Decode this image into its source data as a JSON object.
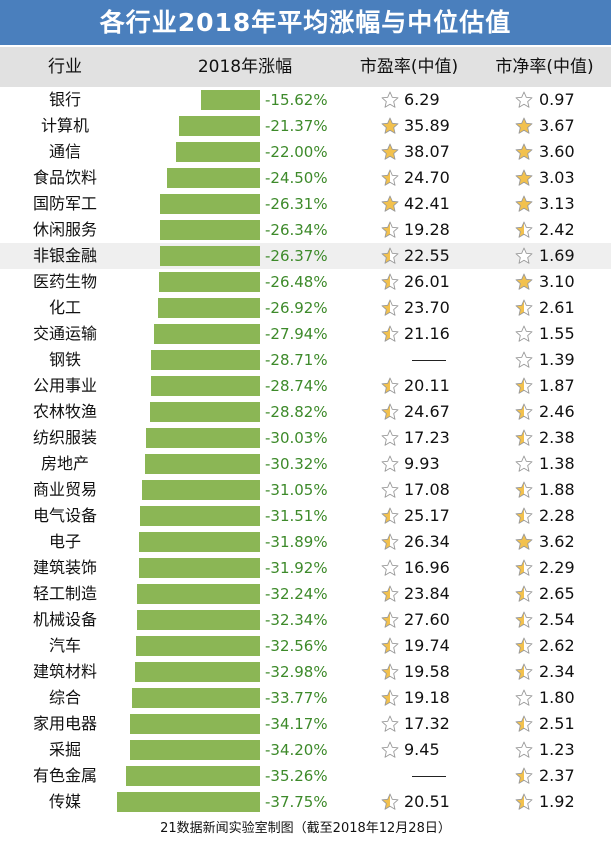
{
  "title": "各行业2018年平均涨幅与中位估值",
  "headers": {
    "industry": "行业",
    "change": "2018年涨幅",
    "pe": "市盈率(中值)",
    "pb": "市净率(中值)"
  },
  "colors": {
    "title_bg": "#4a7fbd",
    "bar": "#8bb655",
    "pct_text": "#3d8a2a",
    "star_gold": "#f2c14e",
    "star_empty": "#ffffff"
  },
  "chart_data": {
    "type": "bar",
    "orientation": "horizontal",
    "title": "各行业2018年平均涨幅与中位估值",
    "categories": [
      "银行",
      "计算机",
      "通信",
      "食品饮料",
      "国防军工",
      "休闲服务",
      "非银金融",
      "医药生物",
      "化工",
      "交通运输",
      "钢铁",
      "公用事业",
      "农林牧渔",
      "纺织服装",
      "房地产",
      "商业贸易",
      "电气设备",
      "电子",
      "建筑装饰",
      "轻工制造",
      "机械设备",
      "汽车",
      "建筑材料",
      "综合",
      "家用电器",
      "采掘",
      "有色金属",
      "传媒"
    ],
    "series": [
      {
        "name": "2018年涨幅",
        "values": [
          -15.62,
          -21.37,
          -22.0,
          -24.5,
          -26.31,
          -26.34,
          -26.37,
          -26.48,
          -26.92,
          -27.94,
          -28.71,
          -28.74,
          -28.82,
          -30.03,
          -30.32,
          -31.05,
          -31.51,
          -31.89,
          -31.92,
          -32.24,
          -32.34,
          -32.56,
          -32.98,
          -33.77,
          -34.17,
          -34.2,
          -35.26,
          -37.75
        ]
      }
    ],
    "labels": [
      "-15.62%",
      "-21.37%",
      "-22.00%",
      "-24.50%",
      "-26.31%",
      "-26.34%",
      "-26.37%",
      "-26.48%",
      "-26.92%",
      "-27.94%",
      "-28.71%",
      "-28.74%",
      "-28.82%",
      "-30.03%",
      "-30.32%",
      "-31.05%",
      "-31.51%",
      "-31.89%",
      "-31.92%",
      "-32.24%",
      "-32.34%",
      "-32.56%",
      "-32.98%",
      "-33.77%",
      "-34.17%",
      "-34.20%",
      "-35.26%",
      "-37.75%"
    ],
    "pe_median": [
      "6.29",
      "35.89",
      "38.07",
      "24.70",
      "42.41",
      "19.28",
      "22.55",
      "26.01",
      "23.70",
      "21.16",
      "",
      "20.11",
      "24.67",
      "17.23",
      "9.93",
      "17.08",
      "25.17",
      "26.34",
      "16.96",
      "23.84",
      "27.60",
      "19.74",
      "19.58",
      "19.18",
      "17.32",
      "9.45",
      "",
      "20.51"
    ],
    "pe_star_fill": [
      0,
      1,
      1,
      0.5,
      1,
      0.5,
      0.5,
      0.5,
      0.5,
      0.5,
      null,
      0.5,
      0.5,
      0,
      0,
      0,
      0.5,
      0.5,
      0,
      0.5,
      0.5,
      0.5,
      0.5,
      0.5,
      0,
      0,
      null,
      0.5
    ],
    "pb_median": [
      "0.97",
      "3.67",
      "3.60",
      "3.03",
      "3.13",
      "2.42",
      "1.69",
      "3.10",
      "2.61",
      "1.55",
      "1.39",
      "1.87",
      "2.46",
      "2.38",
      "1.38",
      "1.88",
      "2.28",
      "3.62",
      "2.29",
      "2.65",
      "2.54",
      "2.62",
      "2.34",
      "1.80",
      "2.51",
      "1.23",
      "2.37",
      "1.92"
    ],
    "pb_star_fill": [
      0,
      1,
      1,
      1,
      1,
      0.5,
      0,
      1,
      0.5,
      0,
      0,
      0.5,
      0.5,
      0.5,
      0,
      0.5,
      0.5,
      1,
      0.5,
      0.5,
      0.5,
      0.5,
      0.5,
      0,
      0.5,
      0,
      0.5,
      0.5
    ],
    "pe_missing_text": "——",
    "highlighted_row": "非银金融"
  },
  "footer": "21数据新闻实验室制图（截至2018年12月28日）"
}
